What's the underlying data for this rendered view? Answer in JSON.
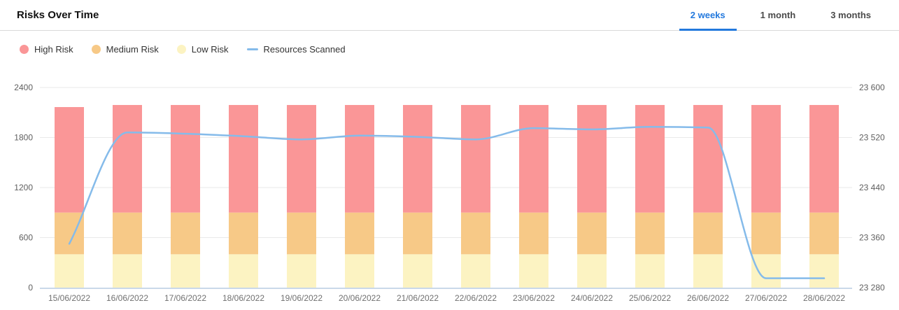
{
  "header": {
    "title": "Risks Over Time",
    "tabs": [
      {
        "label": "2 weeks",
        "active": true
      },
      {
        "label": "1 month",
        "active": false
      },
      {
        "label": "3 months",
        "active": false
      }
    ]
  },
  "legend": {
    "items": [
      {
        "label": "High Risk",
        "swatch": "dot",
        "color": "#fa9697"
      },
      {
        "label": "Medium Risk",
        "swatch": "dot",
        "color": "#f7c987"
      },
      {
        "label": "Low Risk",
        "swatch": "dot",
        "color": "#fcf3c2"
      },
      {
        "label": "Resources Scanned",
        "swatch": "line",
        "color": "#85bbea"
      }
    ]
  },
  "colors": {
    "accent": "#2379dd",
    "grid": "#e9e9e9",
    "axis_line": "#b9cce2",
    "tick_text": "#5f5f5f",
    "date_text": "#707070",
    "high_risk": "#fa9697",
    "medium_risk": "#f7c987",
    "low_risk": "#fcf3c2",
    "line": "#85bbea"
  },
  "chart_data": {
    "type": "bar",
    "subtype": "stacked-bars-with-line",
    "title": "Risks Over Time",
    "categories": [
      "15/06/2022",
      "16/06/2022",
      "17/06/2022",
      "18/06/2022",
      "19/06/2022",
      "20/06/2022",
      "21/06/2022",
      "22/06/2022",
      "23/06/2022",
      "24/06/2022",
      "25/06/2022",
      "26/06/2022",
      "27/06/2022",
      "28/06/2022"
    ],
    "series": [
      {
        "name": "Low Risk",
        "type": "bar",
        "stack": "risk",
        "color": "#fcf3c2",
        "values": [
          400,
          400,
          400,
          400,
          400,
          400,
          400,
          400,
          400,
          400,
          400,
          400,
          400,
          400
        ]
      },
      {
        "name": "Medium Risk",
        "type": "bar",
        "stack": "risk",
        "color": "#f7c987",
        "values": [
          500,
          500,
          500,
          500,
          500,
          500,
          500,
          500,
          500,
          500,
          500,
          500,
          500,
          500
        ]
      },
      {
        "name": "High Risk",
        "type": "bar",
        "stack": "risk",
        "color": "#fa9697",
        "values": [
          1265,
          1290,
          1290,
          1290,
          1290,
          1290,
          1290,
          1290,
          1290,
          1290,
          1290,
          1290,
          1290,
          1290
        ]
      },
      {
        "name": "Resources Scanned",
        "type": "line",
        "axis": "right",
        "color": "#85bbea",
        "values": [
          23350,
          23528,
          23526,
          23522,
          23517,
          23523,
          23521,
          23517,
          23535,
          23533,
          23537,
          23536,
          23295,
          23295
        ]
      }
    ],
    "yaxis_left": {
      "min": 0,
      "max": 2400,
      "tick_values": [
        0,
        600,
        1200,
        1800,
        2400
      ],
      "tick_labels": [
        "0",
        "600",
        "1200",
        "1800",
        "2400"
      ]
    },
    "yaxis_right": {
      "min": 23280,
      "max": 23600,
      "tick_values": [
        23280,
        23360,
        23440,
        23520,
        23600
      ],
      "tick_labels": [
        "23 280",
        "23 360",
        "23 440",
        "23 520",
        "23 600"
      ]
    },
    "grid": true,
    "legend_position": "top"
  }
}
